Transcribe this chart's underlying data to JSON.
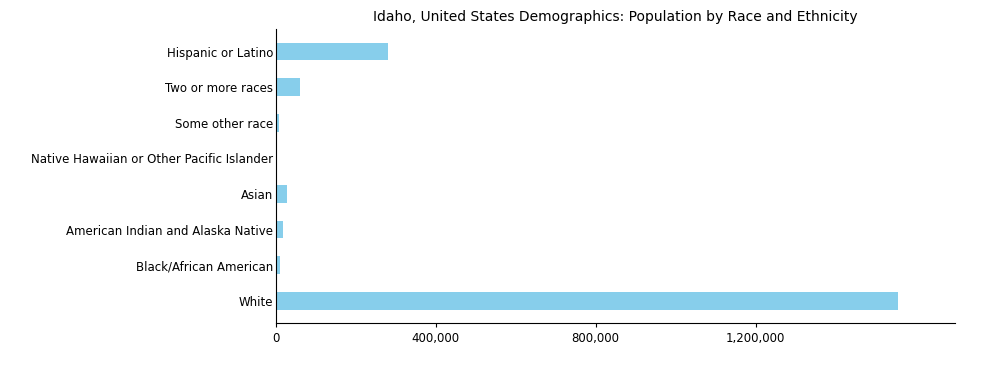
{
  "title": "Idaho, United States Demographics: Population by Race and Ethnicity",
  "categories": [
    "White",
    "Black/African American",
    "American Indian and Alaska Native",
    "Asian",
    "Native Hawaiian or Other Pacific Islander",
    "Some other race",
    "Two or more races",
    "Hispanic or Latino"
  ],
  "values": [
    1556234,
    10000,
    18000,
    27000,
    2500,
    8000,
    60000,
    280000
  ],
  "bar_color": "#87CEEB",
  "background_color": "#ffffff",
  "xlim": [
    0,
    1700000
  ],
  "xticks": [
    0,
    400000,
    800000,
    1200000
  ],
  "xtick_labels": [
    "0",
    "400,000",
    "800,000",
    "1,200,000"
  ],
  "title_fontsize": 10,
  "tick_fontsize": 8.5,
  "bar_height": 0.5
}
